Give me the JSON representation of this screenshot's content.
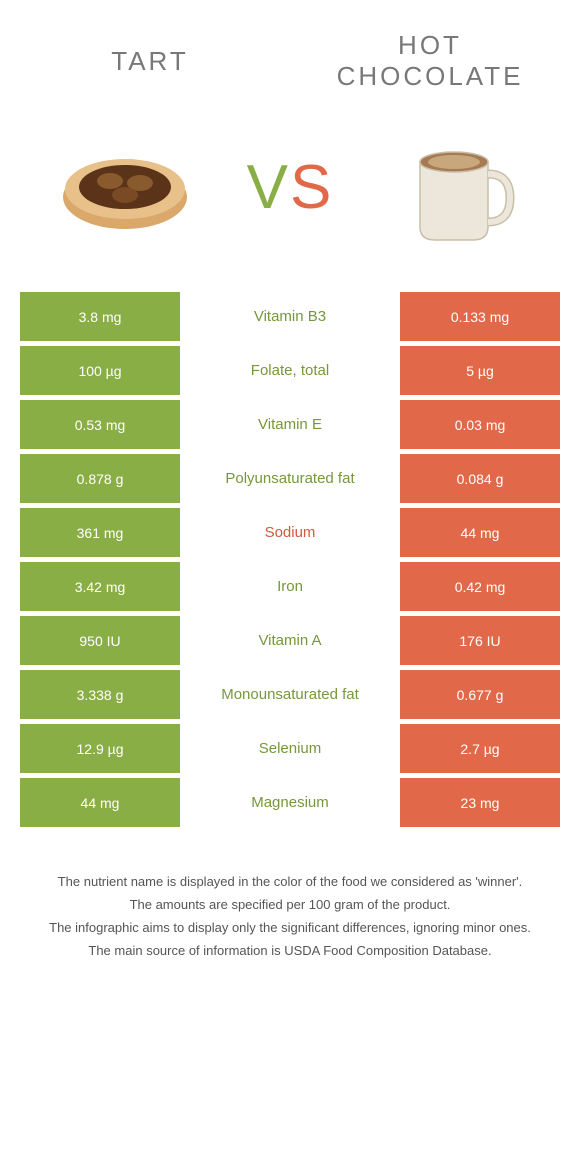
{
  "header": {
    "left_title": "TART",
    "right_title": "HOT CHOCOLATE"
  },
  "vs": {
    "v": "V",
    "s": "S"
  },
  "colors": {
    "green": "#8aae46",
    "orange": "#e1694a",
    "green_text": "#76983a",
    "orange_text": "#d05a3e"
  },
  "rows": [
    {
      "left": "3.8 mg",
      "mid": "Vitamin B3",
      "right": "0.133 mg",
      "winner": "left"
    },
    {
      "left": "100 µg",
      "mid": "Folate, total",
      "right": "5 µg",
      "winner": "left"
    },
    {
      "left": "0.53 mg",
      "mid": "Vitamin E",
      "right": "0.03 mg",
      "winner": "left"
    },
    {
      "left": "0.878 g",
      "mid": "Polyunsaturated fat",
      "right": "0.084 g",
      "winner": "left"
    },
    {
      "left": "361 mg",
      "mid": "Sodium",
      "right": "44 mg",
      "winner": "right"
    },
    {
      "left": "3.42 mg",
      "mid": "Iron",
      "right": "0.42 mg",
      "winner": "left"
    },
    {
      "left": "950 IU",
      "mid": "Vitamin A",
      "right": "176 IU",
      "winner": "left"
    },
    {
      "left": "3.338 g",
      "mid": "Monounsaturated fat",
      "right": "0.677 g",
      "winner": "left"
    },
    {
      "left": "12.9 µg",
      "mid": "Selenium",
      "right": "2.7 µg",
      "winner": "left"
    },
    {
      "left": "44 mg",
      "mid": "Magnesium",
      "right": "23 mg",
      "winner": "left"
    }
  ],
  "footer": {
    "line1": "The nutrient name is displayed in the color of the food we considered as 'winner'.",
    "line2": "The amounts are specified per 100 gram of the product.",
    "line3": "The infographic aims to display only the significant differences, ignoring minor ones.",
    "line4": "The main source of information is USDA Food Composition Database."
  }
}
